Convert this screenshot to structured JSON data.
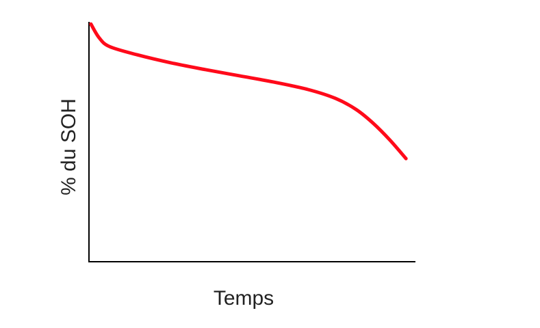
{
  "chart_data": {
    "type": "line",
    "xlabel": "Temps",
    "ylabel": "% du SOH",
    "x": [
      0.6,
      3.1,
      6.3,
      14.7,
      25.2,
      35.6,
      46.1,
      56.6,
      67.1,
      75.5,
      81.8,
      87.0,
      92.2,
      97.1
    ],
    "series": [
      {
        "color": "#ff0a1a",
        "values": [
          99.1,
          93.4,
          89.7,
          86.3,
          82.9,
          80.1,
          77.5,
          74.9,
          71.8,
          68.1,
          63.5,
          57.8,
          50.7,
          43.0
        ]
      }
    ],
    "xlim": [
      0,
      100
    ],
    "ylim": [
      0,
      100
    ]
  }
}
